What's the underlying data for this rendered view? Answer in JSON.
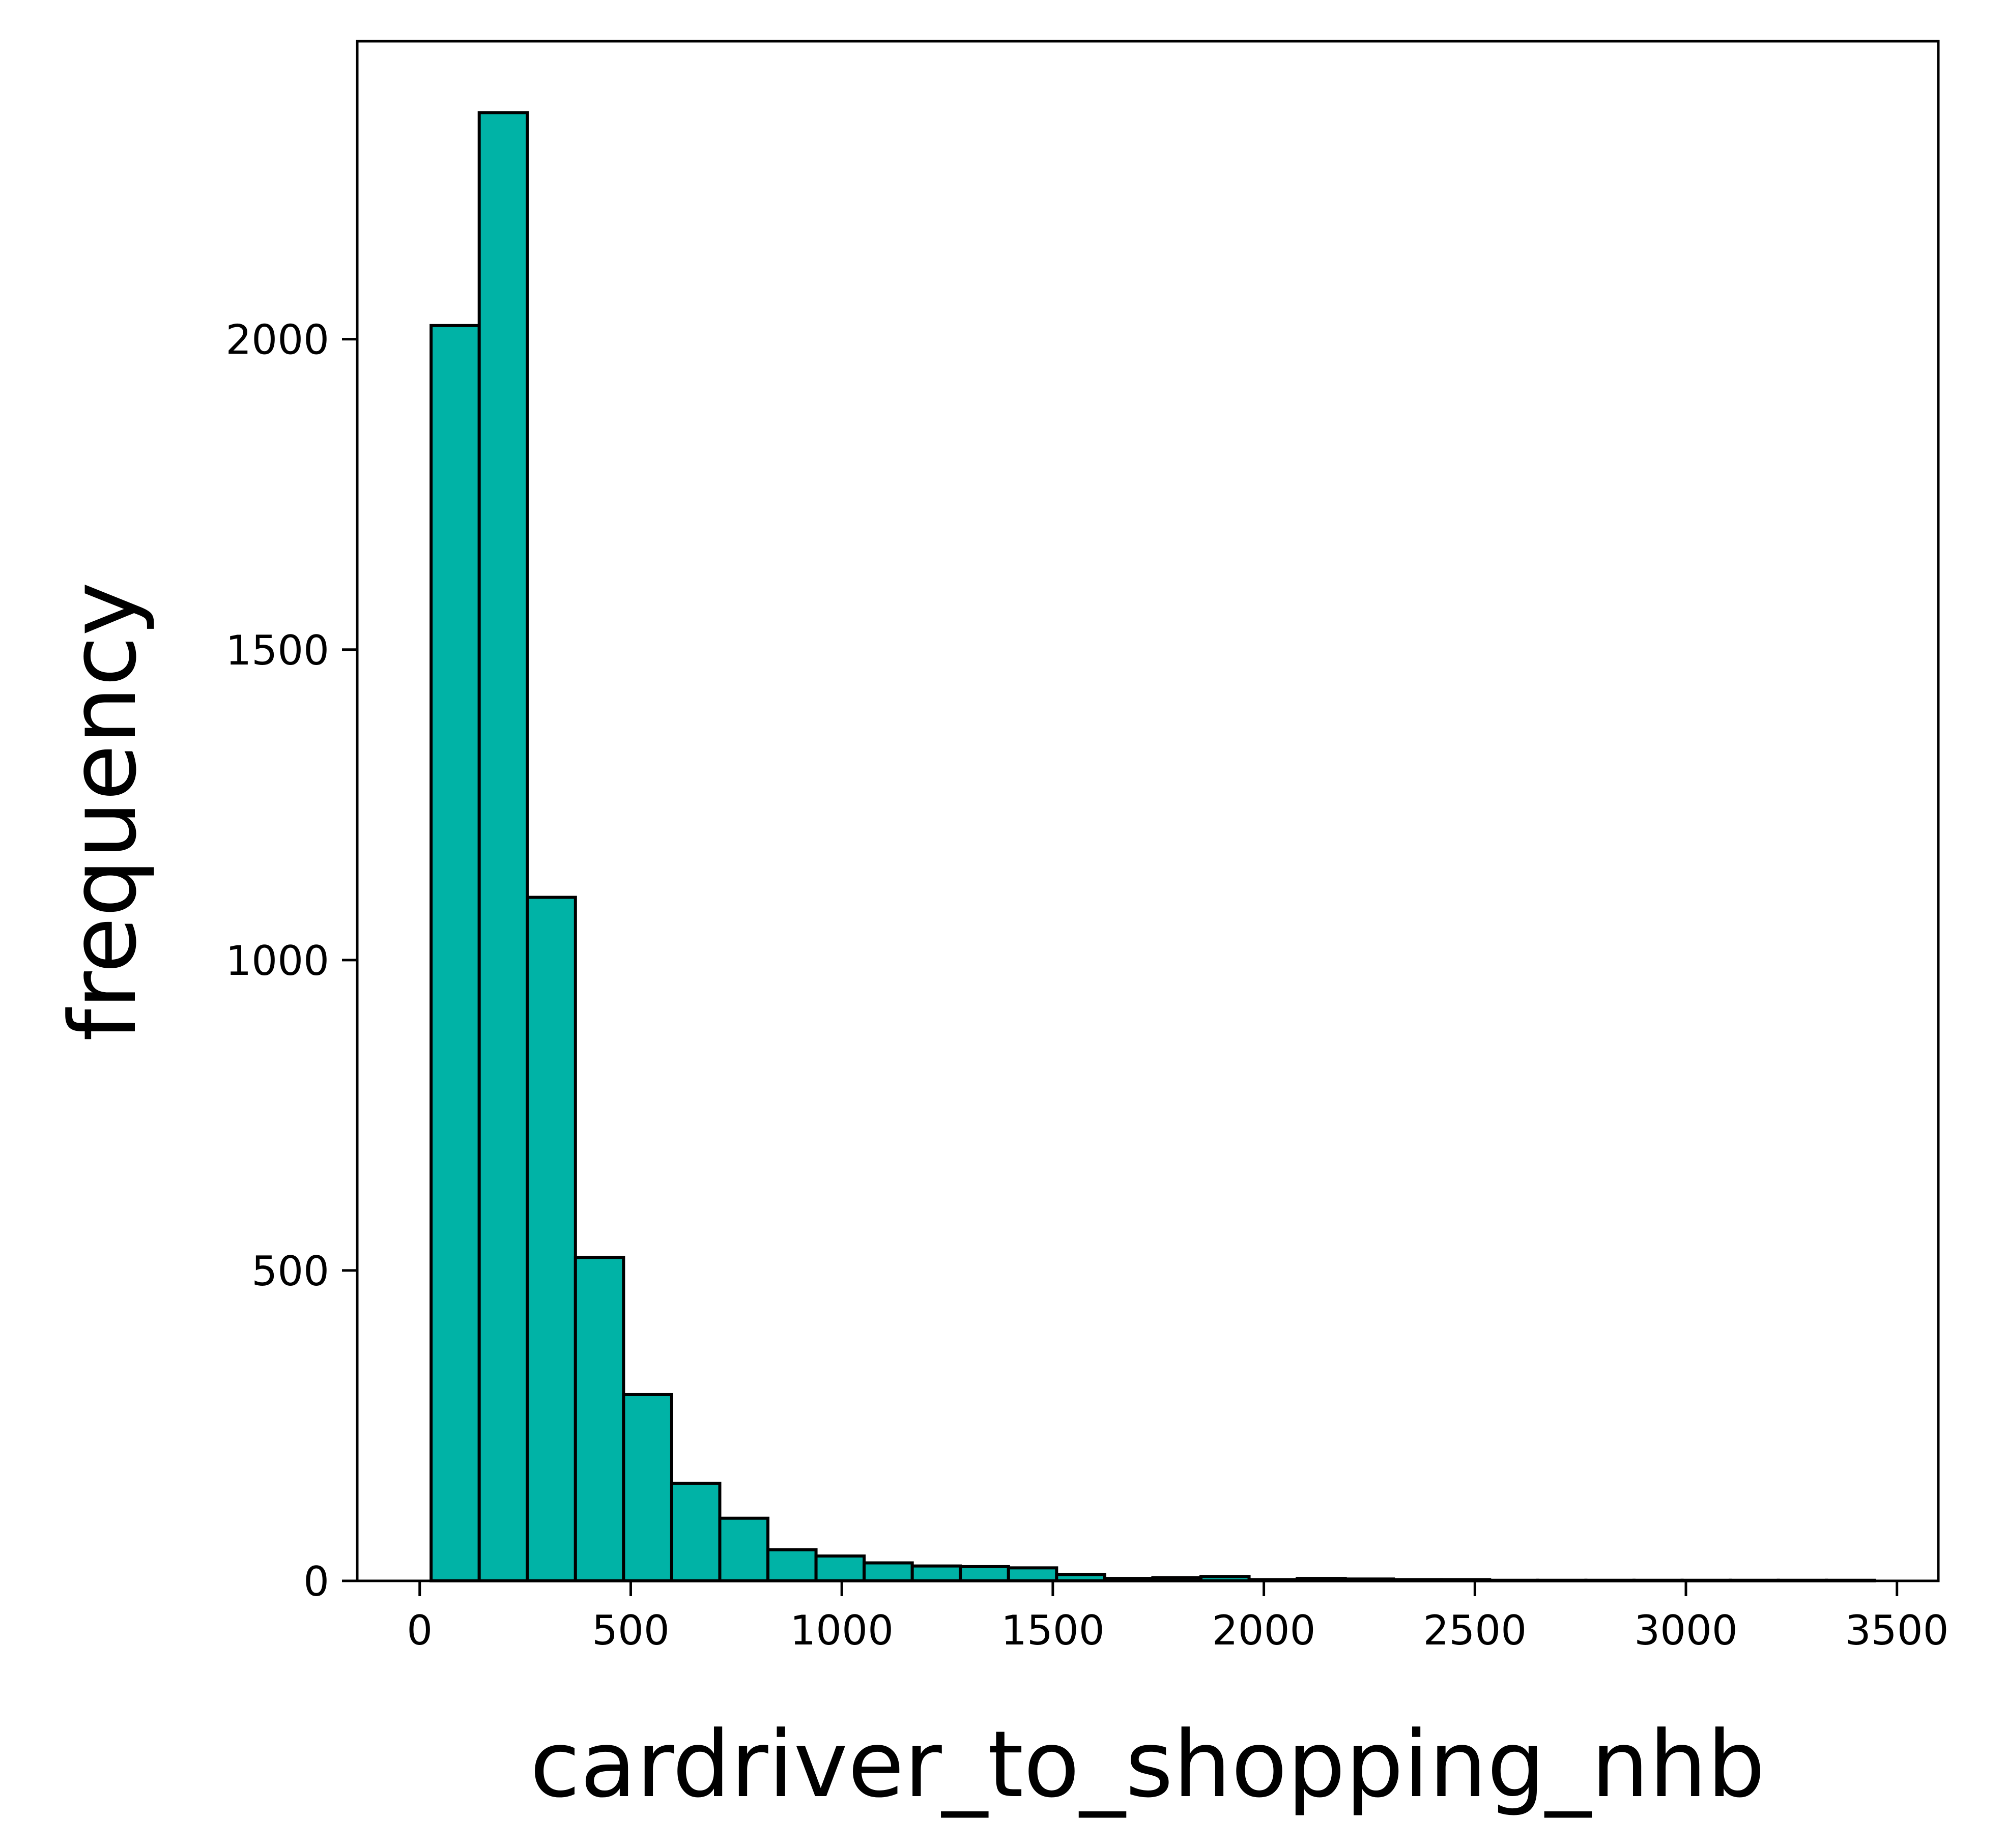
{
  "chart_data": {
    "type": "bar",
    "title": "",
    "xlabel": "cardriver_to_shopping_nhb",
    "ylabel": "frequency",
    "xlim": [
      -148,
      3598
    ],
    "ylim": [
      0,
      2480
    ],
    "x_ticks": [
      0,
      500,
      1000,
      1500,
      2000,
      2500,
      3000,
      3500
    ],
    "y_ticks": [
      0,
      500,
      1000,
      1500,
      2000
    ],
    "bin_edges": [
      27,
      141,
      255,
      369,
      483,
      597,
      711,
      825,
      939,
      1053,
      1167,
      1281,
      1395,
      1509,
      1623,
      1737,
      1851,
      1965,
      2079,
      2193,
      2307,
      2421,
      2535,
      2649,
      2763,
      2877,
      2991,
      3105,
      3219,
      3333,
      3447
    ],
    "counts": [
      2022,
      2365,
      1101,
      521,
      300,
      157,
      101,
      50,
      40,
      29,
      24,
      23,
      21,
      10,
      4,
      5,
      7,
      2,
      4,
      3,
      2,
      2,
      1,
      1,
      1,
      1,
      1,
      1,
      1,
      1
    ],
    "grid": false,
    "legend": "none",
    "bar_color": "#00b3a6",
    "edge_color": "#000000"
  }
}
